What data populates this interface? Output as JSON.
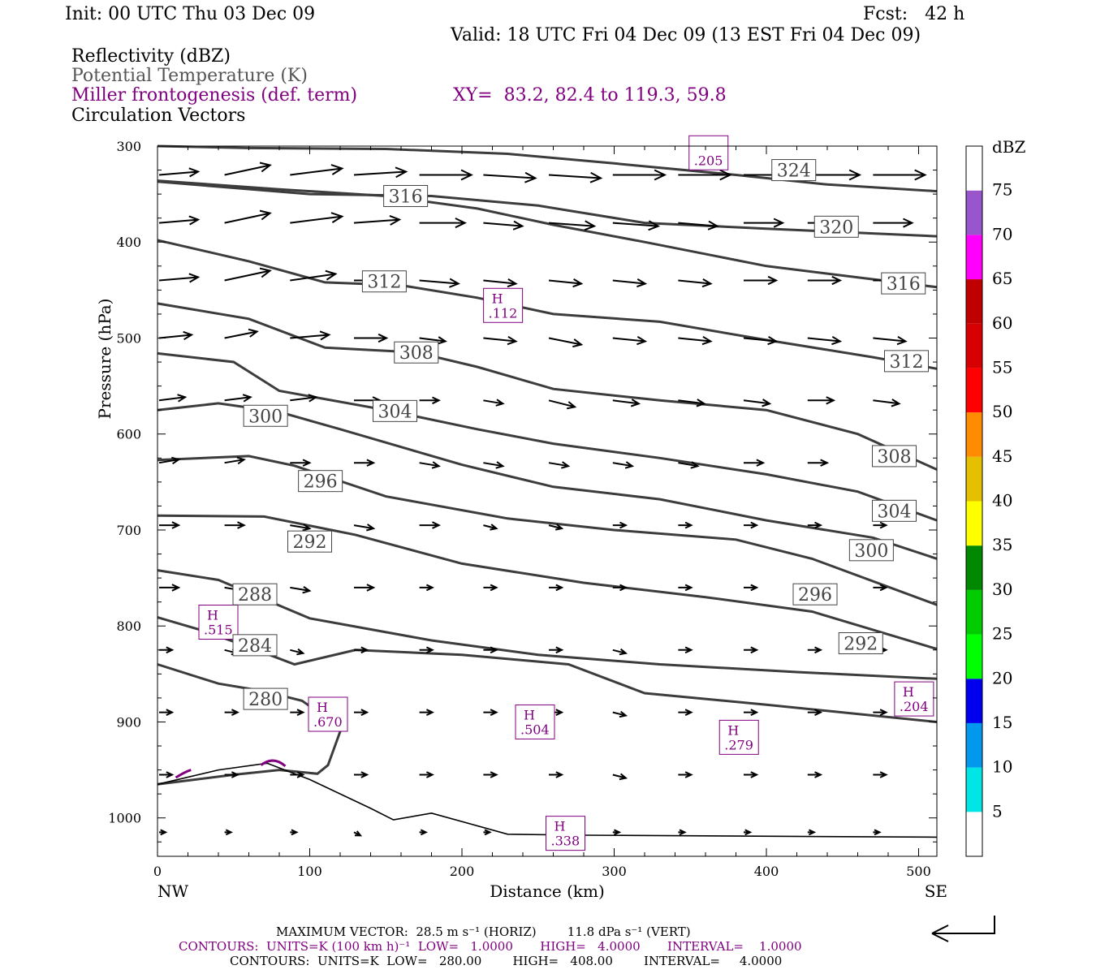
{
  "header": {
    "init": "Init: 00 UTC Thu 03 Dec 09",
    "fcst": "Fcst:   42 h",
    "valid": "Valid: 18 UTC Fri 04 Dec 09 (13 EST Fri 04 Dec 09)",
    "fields": [
      "Reflectivity (dBZ)",
      "Potential Temperature (K)",
      "Miller frontogenesis (def. term)",
      "Circulation Vectors"
    ],
    "xy": "XY=  83.2, 82.4 to 119.3, 59.8"
  },
  "footer": {
    "max_vector": "MAXIMUM VECTOR:  28.5 m s⁻¹ (HORIZ)        11.8 dPa s⁻¹ (VERT)",
    "contours_1": "CONTOURS:  UNITS=K (100 km h)⁻¹  LOW=   1.0000       HIGH=   4.0000       INTERVAL=    1.0000",
    "contours_2": "CONTOURS:  UNITS=K  LOW=   280.00        HIGH=   408.00        INTERVAL=     4.0000"
  },
  "colors": {
    "theta": "#3c3c3c",
    "frontogenesis": "#800080",
    "vectors": "#000000"
  },
  "chart_data": {
    "type": "line",
    "title": "",
    "xlabel": "Distance (km)",
    "ylabel": "Pressure (hPa)",
    "xlim": [
      0,
      512
    ],
    "ylim": [
      1040,
      300
    ],
    "x_ticks": [
      0,
      100,
      200,
      300,
      400,
      500
    ],
    "y_ticks": [
      300,
      400,
      500,
      600,
      700,
      800,
      900,
      1000
    ],
    "x_end_labels": {
      "left": "NW",
      "right": "SE"
    },
    "colorbar": {
      "label": "dBZ",
      "levels": [
        5,
        10,
        15,
        20,
        25,
        30,
        35,
        40,
        45,
        50,
        55,
        60,
        65,
        70,
        75
      ],
      "colors": [
        "#00e5e5",
        "#0099ee",
        "#0000ee",
        "#00ff00",
        "#00cc00",
        "#008800",
        "#ffff00",
        "#e5c000",
        "#ff8c00",
        "#ff0000",
        "#d60000",
        "#c00000",
        "#ff00ff",
        "#9955cc",
        "#ffffff"
      ]
    },
    "isentropes": [
      {
        "label": "324",
        "points": [
          [
            0,
            300
          ],
          [
            60,
            302
          ],
          [
            150,
            303
          ],
          [
            230,
            308
          ],
          [
            300,
            318
          ],
          [
            380,
            330
          ],
          [
            440,
            340
          ],
          [
            512,
            347
          ]
        ],
        "label_at": [
          418,
          325
        ]
      },
      {
        "label": "320",
        "points": [
          [
            0,
            337
          ],
          [
            100,
            350
          ],
          [
            180,
            352
          ],
          [
            250,
            362
          ],
          [
            320,
            380
          ],
          [
            400,
            386
          ],
          [
            470,
            391
          ],
          [
            512,
            394
          ]
        ],
        "label_at": [
          446,
          384
        ]
      },
      {
        "label": "316",
        "points": [
          [
            0,
            336
          ],
          [
            80,
            345
          ],
          [
            150,
            352
          ],
          [
            210,
            365
          ],
          [
            260,
            382
          ],
          [
            320,
            400
          ],
          [
            400,
            425
          ],
          [
            512,
            447
          ]
        ],
        "label_at": [
          163,
          352
        ]
      },
      {
        "label": "316",
        "points": [
          [
            0,
            336
          ],
          [
            80,
            345
          ],
          [
            150,
            352
          ]
        ],
        "label_at": [
          490,
          443
        ],
        "hidden_line": true
      },
      {
        "label": "312",
        "points": [
          [
            0,
            398
          ],
          [
            60,
            420
          ],
          [
            110,
            442
          ],
          [
            160,
            445
          ],
          [
            210,
            458
          ],
          [
            260,
            475
          ],
          [
            330,
            483
          ],
          [
            400,
            502
          ],
          [
            470,
            520
          ],
          [
            512,
            532
          ]
        ],
        "label_at": [
          149,
          441
        ]
      },
      {
        "label": "312",
        "points": [],
        "label_at": [
          492,
          524
        ]
      },
      {
        "label": "308",
        "points": [
          [
            0,
            464
          ],
          [
            60,
            480
          ],
          [
            110,
            510
          ],
          [
            170,
            515
          ],
          [
            210,
            530
          ],
          [
            260,
            553
          ],
          [
            330,
            565
          ],
          [
            400,
            575
          ],
          [
            460,
            600
          ],
          [
            512,
            637
          ]
        ],
        "label_at": [
          170,
          515
        ]
      },
      {
        "label": "308",
        "points": [],
        "label_at": [
          484,
          623
        ]
      },
      {
        "label": "304",
        "points": [
          [
            0,
            516
          ],
          [
            50,
            525
          ],
          [
            80,
            555
          ],
          [
            150,
            575
          ],
          [
            210,
            595
          ],
          [
            260,
            610
          ],
          [
            330,
            625
          ],
          [
            400,
            642
          ],
          [
            460,
            660
          ],
          [
            512,
            690
          ]
        ],
        "label_at": [
          156,
          576
        ]
      },
      {
        "label": "304",
        "points": [],
        "label_at": [
          484,
          680
        ]
      },
      {
        "label": "300",
        "points": [
          [
            0,
            575
          ],
          [
            40,
            568
          ],
          [
            80,
            577
          ],
          [
            120,
            595
          ],
          [
            200,
            632
          ],
          [
            260,
            655
          ],
          [
            330,
            668
          ],
          [
            400,
            690
          ],
          [
            470,
            708
          ],
          [
            512,
            730
          ]
        ],
        "label_at": [
          71,
          581
        ]
      },
      {
        "label": "300",
        "points": [],
        "label_at": [
          469,
          721
        ]
      },
      {
        "label": "296",
        "points": [
          [
            0,
            627
          ],
          [
            60,
            623
          ],
          [
            90,
            633
          ],
          [
            150,
            665
          ],
          [
            230,
            688
          ],
          [
            300,
            700
          ],
          [
            380,
            710
          ],
          [
            430,
            730
          ],
          [
            512,
            778
          ]
        ],
        "label_at": [
          107,
          649
        ]
      },
      {
        "label": "296",
        "points": [],
        "label_at": [
          432,
          767
        ]
      },
      {
        "label": "292",
        "points": [
          [
            0,
            685
          ],
          [
            70,
            686
          ],
          [
            130,
            705
          ],
          [
            200,
            735
          ],
          [
            280,
            755
          ],
          [
            360,
            770
          ],
          [
            430,
            785
          ],
          [
            512,
            824
          ]
        ],
        "label_at": [
          100,
          712
        ]
      },
      {
        "label": "292",
        "points": [],
        "label_at": [
          462,
          818
        ]
      },
      {
        "label": "288",
        "points": [
          [
            0,
            742
          ],
          [
            40,
            752
          ],
          [
            70,
            772
          ],
          [
            100,
            792
          ],
          [
            180,
            815
          ],
          [
            250,
            830
          ],
          [
            330,
            840
          ],
          [
            420,
            848
          ],
          [
            512,
            855
          ]
        ],
        "label_at": [
          64,
          767
        ]
      },
      {
        "label": "284",
        "points": [
          [
            0,
            791
          ],
          [
            30,
            805
          ],
          [
            60,
            822
          ],
          [
            90,
            840
          ],
          [
            130,
            825
          ],
          [
            200,
            830
          ],
          [
            270,
            840
          ],
          [
            320,
            870
          ],
          [
            400,
            882
          ],
          [
            512,
            900
          ]
        ],
        "label_at": [
          64,
          820
        ]
      },
      {
        "label": "280",
        "points": [
          [
            0,
            840
          ],
          [
            40,
            860
          ],
          [
            70,
            868
          ],
          [
            95,
            878
          ],
          [
            115,
            900
          ],
          [
            120,
            910
          ],
          [
            112,
            945
          ],
          [
            105,
            954
          ],
          [
            80,
            950
          ],
          [
            50,
            955
          ],
          [
            0,
            965
          ]
        ],
        "label_at": [
          71,
          876
        ]
      },
      {
        "label": "",
        "points": [
          [
            0,
            965
          ],
          [
            40,
            950
          ],
          [
            72,
            943
          ],
          [
            100,
            960
          ],
          [
            140,
            990
          ],
          [
            155,
            1002
          ],
          [
            180,
            995
          ],
          [
            230,
            1017
          ],
          [
            280,
            1018
          ],
          [
            512,
            1020
          ]
        ],
        "label_at": null,
        "surface": true
      }
    ],
    "frontogenesis_maxima": [
      {
        "label": "H",
        "value": ".515",
        "at": [
          40,
          796
        ]
      },
      {
        "label": "H",
        "value": ".670",
        "at": [
          112,
          892
        ]
      },
      {
        "label": "H",
        "value": ".112",
        "at": [
          227,
          466
        ]
      },
      {
        "label": "H",
        "value": ".504",
        "at": [
          248,
          900
        ]
      },
      {
        "label": "H",
        "value": ".279",
        "at": [
          382,
          916
        ]
      },
      {
        "label": "H",
        "value": ".204",
        "at": [
          497,
          876
        ]
      },
      {
        "label": "H",
        "value": ".338",
        "at": [
          268,
          1016
        ]
      },
      {
        "label": "",
        "value": ".205",
        "at": [
          362,
          307
        ]
      }
    ],
    "vectors": {
      "x_positions": [
        0,
        43,
        86,
        128,
        171,
        213,
        256,
        298,
        341,
        384,
        426,
        469,
        512
      ],
      "p_levels": [
        330,
        380,
        440,
        500,
        565,
        630,
        695,
        760,
        825,
        890,
        955,
        1015
      ],
      "u": [
        [
          6,
          7,
          8,
          8,
          8,
          8,
          8,
          8,
          8,
          8,
          8,
          8,
          8
        ],
        [
          6,
          7,
          8,
          7,
          7,
          6,
          7,
          7,
          6,
          6,
          6,
          6,
          6
        ],
        [
          6,
          7,
          7,
          6,
          6,
          5,
          5,
          5,
          5,
          5,
          5,
          5,
          5
        ],
        [
          5,
          5,
          6,
          5,
          4,
          5,
          5,
          5,
          5,
          5,
          5,
          5,
          5
        ],
        [
          4,
          4,
          4,
          4,
          3,
          3,
          4,
          4,
          4,
          4,
          4,
          4,
          4
        ],
        [
          3,
          3,
          3,
          3,
          3,
          3,
          3,
          3,
          3,
          3,
          3,
          3,
          3
        ],
        [
          3,
          3,
          3,
          3,
          3,
          2,
          2,
          2,
          2,
          2,
          2,
          2,
          2
        ],
        [
          3,
          3,
          3,
          3,
          2,
          2,
          2,
          2,
          2,
          2,
          2,
          2,
          2
        ],
        [
          2,
          2,
          2,
          2,
          2,
          2,
          2,
          2,
          2,
          2,
          2,
          2,
          2
        ],
        [
          2,
          2,
          2,
          2,
          2,
          2,
          2,
          2,
          2,
          2,
          2,
          2,
          2
        ],
        [
          2,
          2,
          2,
          2,
          2,
          2,
          2,
          2,
          2,
          2,
          2,
          2,
          2
        ],
        [
          1,
          1,
          1,
          1,
          1,
          1,
          1,
          1,
          1,
          1,
          1,
          1,
          1
        ]
      ],
      "w": [
        [
          -1,
          -3,
          -2,
          -1,
          0,
          1,
          1,
          0,
          0,
          0,
          0,
          0,
          0
        ],
        [
          -1,
          -3,
          -2,
          -1,
          0,
          1,
          1,
          1,
          1,
          0,
          0,
          0,
          0
        ],
        [
          -1,
          -3,
          -2,
          0,
          1,
          1,
          1,
          1,
          1,
          0,
          0,
          0,
          0
        ],
        [
          -1,
          -2,
          -1,
          0,
          1,
          1,
          2,
          1,
          1,
          1,
          1,
          1,
          0
        ],
        [
          -1,
          -1,
          -1,
          0,
          0,
          1,
          2,
          1,
          1,
          1,
          0,
          1,
          1
        ],
        [
          -1,
          -1,
          0,
          0,
          1,
          1,
          1,
          1,
          1,
          0,
          0,
          0,
          0
        ],
        [
          0,
          0,
          1,
          1,
          0,
          1,
          1,
          0,
          0,
          0,
          0,
          0,
          0
        ],
        [
          0,
          1,
          1,
          0,
          0,
          0,
          0,
          0,
          0,
          0,
          0,
          0,
          0
        ],
        [
          0,
          1,
          1,
          0,
          0,
          0,
          0,
          1,
          0,
          0,
          0,
          0,
          0
        ],
        [
          0,
          0,
          0,
          0,
          0,
          0,
          0,
          1,
          0,
          0,
          0,
          0,
          0
        ],
        [
          0,
          0,
          0,
          0,
          0,
          0,
          0,
          1,
          0,
          0,
          0,
          0,
          0
        ],
        [
          0,
          0,
          0,
          1,
          0,
          0,
          0,
          0,
          0,
          0,
          0,
          0,
          0
        ]
      ]
    }
  }
}
